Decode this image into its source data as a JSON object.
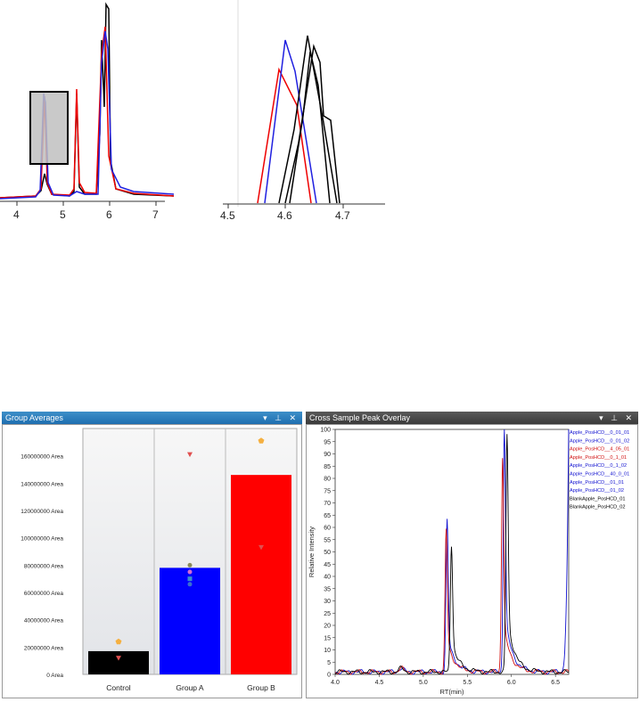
{
  "top_left_plot": {
    "x_ticks": [
      "4",
      "5",
      "6",
      "7"
    ]
  },
  "top_right_plot": {
    "x_ticks": [
      "4.5",
      "4.6",
      "4.7"
    ]
  },
  "group_averages": {
    "title": "Group Averages",
    "controls": "▾ ⊥ ✕",
    "colors": {
      "control": "#000000",
      "group_a": "#0000ff",
      "group_b": "#ff0000",
      "marker_orange": "#f5b040",
      "marker_red": "#e05050"
    },
    "chart_data": {
      "type": "bar",
      "categories": [
        "Control",
        "Group A",
        "Group B"
      ],
      "values": [
        17000000,
        78000000,
        146000000
      ],
      "ylim": [
        0,
        180000000
      ],
      "y_ticks": [
        "0 Area",
        "20000000 Area",
        "40000000 Area",
        "60000000 Area",
        "80000000 Area",
        "100000000 Area",
        "120000000 Area",
        "140000000 Area",
        "160000000 Area"
      ],
      "markers": [
        {
          "category": "Control",
          "value": 24000000,
          "shape": "pentagon",
          "color": "#f5b040"
        },
        {
          "category": "Control",
          "value": 12000000,
          "shape": "triangle-down",
          "color": "#e05050"
        },
        {
          "category": "Group A",
          "value": 161000000,
          "shape": "triangle-down",
          "color": "#e05050"
        },
        {
          "category": "Group A",
          "value": 80000000,
          "shape": "circle",
          "color": "#8b8b5a"
        },
        {
          "category": "Group A",
          "value": 75000000,
          "shape": "circle",
          "color": "#d46ad4"
        },
        {
          "category": "Group A",
          "value": 70000000,
          "shape": "square",
          "color": "#3a8fd0"
        },
        {
          "category": "Group A",
          "value": 66000000,
          "shape": "circle",
          "color": "#3a6fd0"
        },
        {
          "category": "Group B",
          "value": 171000000,
          "shape": "pentagon",
          "color": "#f5b040"
        },
        {
          "category": "Group B",
          "value": 93000000,
          "shape": "triangle-down",
          "color": "#e05050"
        }
      ]
    }
  },
  "overlay": {
    "title": "Cross Sample Peak Overlay",
    "controls": "▾ ⊥ ✕",
    "ylabel": "Relative Intensity",
    "xlabel": "RT(min)",
    "y_ticks": [
      "0",
      "5",
      "10",
      "15",
      "20",
      "25",
      "30",
      "35",
      "40",
      "45",
      "50",
      "55",
      "60",
      "65",
      "70",
      "75",
      "80",
      "85",
      "90",
      "95",
      "100"
    ],
    "x_ticks": [
      "4.0",
      "4.5",
      "5.0",
      "5.5",
      "6.0",
      "6.5"
    ],
    "legend": [
      {
        "label": "Apple_PosHCD__0_01_01",
        "color": "#1010d0"
      },
      {
        "label": "Apple_PosHCD__0_01_02",
        "color": "#1010d0"
      },
      {
        "label": "Apple_PosHCD__4_05_01",
        "color": "#d01010"
      },
      {
        "label": "Apple_PosHCD__0_1_01",
        "color": "#d01010"
      },
      {
        "label": "Apple_PosHCD__0_1_02",
        "color": "#1010d0"
      },
      {
        "label": "Apple_PosHCD__40_0_01",
        "color": "#1010d0"
      },
      {
        "label": "Apple_PosHCD__01_01",
        "color": "#1010d0"
      },
      {
        "label": "Apple_PosHCD__01_02",
        "color": "#1010d0"
      },
      {
        "label": "BlankApple_PosHCD_01",
        "color": "#000000"
      },
      {
        "label": "BlankApple_PosHCD_02",
        "color": "#000000"
      }
    ],
    "chart_data": {
      "type": "line",
      "xlim": [
        4.0,
        6.65
      ],
      "ylim": [
        0,
        100
      ],
      "peaks": [
        {
          "rt": 5.27,
          "height": 62,
          "color": "#1010d0"
        },
        {
          "rt": 5.26,
          "height": 58,
          "color": "#d01010"
        },
        {
          "rt": 5.32,
          "height": 52,
          "color": "#000000"
        },
        {
          "rt": 5.92,
          "height": 100,
          "color": "#1010d0"
        },
        {
          "rt": 5.9,
          "height": 88,
          "color": "#d01010"
        },
        {
          "rt": 5.95,
          "height": 97,
          "color": "#000000"
        }
      ]
    }
  }
}
